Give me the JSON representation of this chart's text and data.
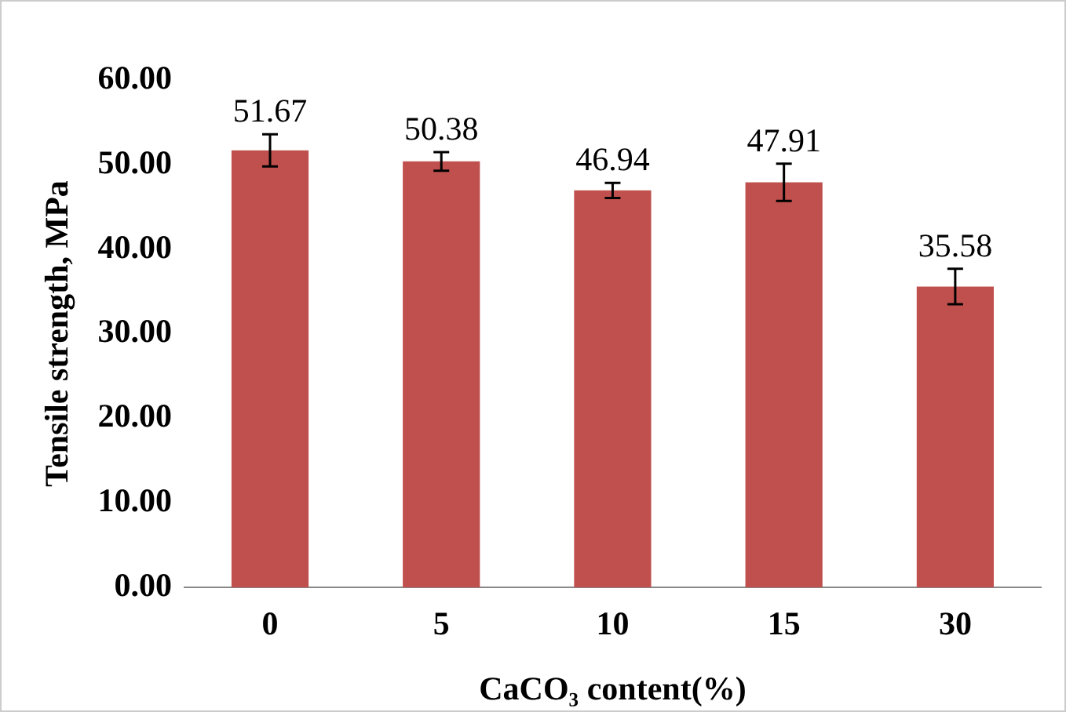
{
  "chart_data": {
    "type": "bar",
    "xlabel": "CaCO₃ content(%)",
    "ylabel": "Tensile strength, MPa",
    "categories": [
      "0",
      "5",
      "10",
      "15",
      "30"
    ],
    "values": [
      51.67,
      50.38,
      46.94,
      47.91,
      35.58
    ],
    "errors": [
      1.9,
      1.1,
      0.9,
      2.2,
      2.1
    ],
    "color": "#c0504d",
    "data_labels": true,
    "ylim": [
      0,
      60
    ],
    "yticks": [
      {
        "value": 0,
        "label": "0.00"
      },
      {
        "value": 10,
        "label": "10.00"
      },
      {
        "value": 20,
        "label": "20.00"
      },
      {
        "value": 30,
        "label": "30.00"
      },
      {
        "value": 40,
        "label": "40.00"
      },
      {
        "value": 50,
        "label": "50.00"
      },
      {
        "value": 60,
        "label": "60.00"
      }
    ],
    "grid": false,
    "legend": false
  }
}
